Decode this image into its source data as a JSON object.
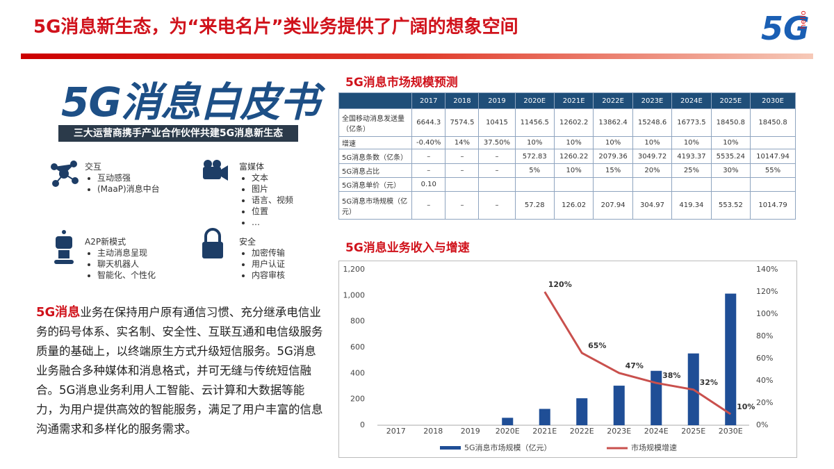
{
  "header": {
    "title": "5G消息新生态，为“来电名片”类业务提供了广阔的想象空间",
    "logo": "5G",
    "logo_tag": "hello"
  },
  "whitepaper": {
    "title": "5G消息白皮书",
    "subtitle": "三大运营商携手产业合作伙伴共建5G消息新生态",
    "features": [
      {
        "title": "交互",
        "items": [
          "互动感强",
          "(MaaP)消息中台"
        ]
      },
      {
        "title": "富媒体",
        "items": [
          "文本",
          "图片",
          "语言、视频",
          "位置",
          "…"
        ]
      },
      {
        "title": "A2P新模式",
        "items": [
          "主动消息呈现",
          "聊天机器人",
          "智能化、个性化"
        ]
      },
      {
        "title": "安全",
        "items": [
          "加密传输",
          "用户认证",
          "内容审核"
        ]
      }
    ]
  },
  "paragraph": {
    "lead": "5G消息",
    "body": "业务在保持用户原有通信习惯、充分继承电信业务的码号体系、实名制、安全性、互联互通和电信级服务质量的基础上，以终端原生方式升级短信服务。5G消息业务融合多种媒体和消息格式，并可无缝与传统短信融合。5G消息业务利用人工智能、云计算和大数据等能力，为用户提供高效的智能服务，满足了用户丰富的信息沟通需求和多样化的服务需求。"
  },
  "table": {
    "title": "5G消息市场规模预测",
    "columns": [
      "2017",
      "2018",
      "2019",
      "2020E",
      "2021E",
      "2022E",
      "2023E",
      "2024E",
      "2025E",
      "2030E"
    ],
    "rows": [
      {
        "label": "全国移动消息发送量（亿条）",
        "cells": [
          "6644.3",
          "7574.5",
          "10415",
          "11456.5",
          "12602.2",
          "13862.4",
          "15248.6",
          "16773.5",
          "18450.8",
          "18450.8"
        ]
      },
      {
        "label": "增速",
        "cells": [
          "-0.40%",
          "14%",
          "37.50%",
          "10%",
          "10%",
          "10%",
          "10%",
          "10%",
          "10%",
          null
        ]
      },
      {
        "label": "5G消息条数（亿条）",
        "cells": [
          "–",
          "–",
          "–",
          "572.83",
          "1260.22",
          "2079.36",
          "3049.72",
          "4193.37",
          "5535.24",
          "10147.94"
        ]
      },
      {
        "label": "5G消息占比",
        "cells": [
          "–",
          "–",
          "–",
          "5%",
          "10%",
          "15%",
          "20%",
          "25%",
          "30%",
          "55%"
        ]
      },
      {
        "label": "5G消息单价（元）",
        "cells": [
          "0.10",
          null,
          null,
          null,
          null,
          null,
          null,
          null,
          null,
          null
        ]
      },
      {
        "label": "5G消息市场规模（亿元）",
        "cells": [
          "–",
          "–",
          "–",
          "57.28",
          "126.02",
          "207.94",
          "304.97",
          "419.34",
          "553.52",
          "1014.79"
        ]
      }
    ]
  },
  "chart_data": {
    "type": "bar",
    "title": "5G消息业务收入与增速",
    "categories": [
      "2017",
      "2018",
      "2019",
      "2020E",
      "2021E",
      "2022E",
      "2023E",
      "2024E",
      "2025E",
      "2030E"
    ],
    "series": [
      {
        "name": "5G消息市场规模（亿元）",
        "type": "bar",
        "color": "#1f4e96",
        "values": [
          null,
          null,
          null,
          57.28,
          126.02,
          207.94,
          304.97,
          419.34,
          553.52,
          1014.79
        ]
      },
      {
        "name": "市场规模增速",
        "type": "line",
        "axis": "y2",
        "color": "#c9504d",
        "values": [
          null,
          null,
          null,
          null,
          120,
          65,
          47,
          38,
          32,
          10
        ],
        "value_labels": [
          null,
          null,
          null,
          null,
          "120%",
          "65%",
          "47%",
          "38%",
          "32%",
          "10%"
        ]
      }
    ],
    "ylim": [
      0,
      1200
    ],
    "yticks": [
      0,
      200,
      400,
      600,
      800,
      {
        "value": 1000,
        "label": "1,000"
      },
      {
        "value": 1200,
        "label": "1,200"
      }
    ],
    "y2lim": [
      0,
      140
    ],
    "y2ticks": [
      {
        "value": 0,
        "label": "0%"
      },
      {
        "value": 20,
        "label": "20%"
      },
      {
        "value": 40,
        "label": "40%"
      },
      {
        "value": 60,
        "label": "60%"
      },
      {
        "value": 80,
        "label": "80%"
      },
      {
        "value": 100,
        "label": "100%"
      },
      {
        "value": 120,
        "label": "120%"
      },
      {
        "value": 140,
        "label": "140%"
      }
    ]
  }
}
